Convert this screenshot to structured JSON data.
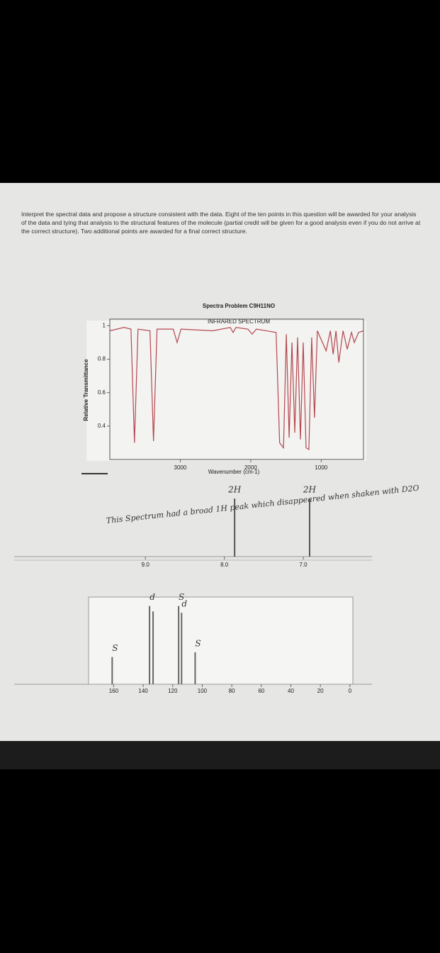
{
  "prompt": "Interpret the spectral data and propose a structure consistent with the data. Eight of the ten points in this question will be awarded for your analysis of the data and tying that analysis to the structural features of the molecule (partial credit will be given for a good analysis even if you do not arrive at the correct structure). Two additional points are awarded for a final correct structure.",
  "handwritten_note": "This Spectrum had a broad 1H peak which disappeared when shaken with D2O",
  "chart_data": [
    {
      "type": "line",
      "title": "Spectra Problem C9H11NO",
      "subtitle": "INFRARED SPECTRUM",
      "ylabel": "Relative Transmittance",
      "xlabel": "Wavenumber (cm-1)",
      "color": "#b5474f",
      "x": [
        4000,
        3800,
        3700,
        3650,
        3600,
        3430,
        3380,
        3330,
        3100,
        3045,
        2990,
        2540,
        2290,
        2250,
        2210,
        2040,
        1980,
        1920,
        1640,
        1590,
        1535,
        1495,
        1455,
        1415,
        1375,
        1335,
        1295,
        1255,
        1215,
        1175,
        1135,
        1095,
        1055,
        930,
        870,
        830,
        790,
        750,
        690,
        630,
        570,
        530,
        470,
        400
      ],
      "values": [
        0.97,
        0.99,
        0.98,
        0.3,
        0.98,
        0.97,
        0.31,
        0.98,
        0.98,
        0.9,
        0.98,
        0.97,
        0.99,
        0.96,
        0.99,
        0.98,
        0.95,
        0.98,
        0.96,
        0.3,
        0.27,
        0.95,
        0.33,
        0.9,
        0.36,
        0.93,
        0.32,
        0.9,
        0.27,
        0.26,
        0.93,
        0.45,
        0.97,
        0.85,
        0.97,
        0.83,
        0.97,
        0.78,
        0.97,
        0.86,
        0.96,
        0.9,
        0.96,
        0.97
      ],
      "xlim": [
        4000,
        400
      ],
      "ylim": [
        0.2,
        1.04
      ],
      "xticks": [
        3000,
        2000,
        1000
      ],
      "yticks": [
        0.4,
        0.6,
        0.8,
        1
      ]
    },
    {
      "type": "stick",
      "color": "#555",
      "x": [
        7.87,
        6.92
      ],
      "values": [
        1,
        1
      ],
      "peak_labels": [
        "2H",
        "2H"
      ],
      "xlim": [
        9.72,
        6.13
      ],
      "ylim": [
        0,
        1.1
      ],
      "xticks": [
        {
          "value": 9,
          "label": "9.0"
        },
        {
          "value": 8,
          "label": "8.0"
        },
        {
          "value": 7,
          "label": "7.0"
        }
      ]
    },
    {
      "type": "stick",
      "color": "#666",
      "x": [
        161,
        135.7,
        133.3,
        116,
        114,
        104.8
      ],
      "values": [
        40,
        115,
        107,
        115,
        105,
        47
      ],
      "peak_labels": [
        "S",
        "d",
        null,
        "S",
        "d",
        "S"
      ],
      "xlim": [
        177,
        -2
      ],
      "ylim": [
        0,
        125
      ],
      "xticks": [
        160,
        140,
        120,
        100,
        80,
        60,
        40,
        20,
        0
      ]
    }
  ]
}
